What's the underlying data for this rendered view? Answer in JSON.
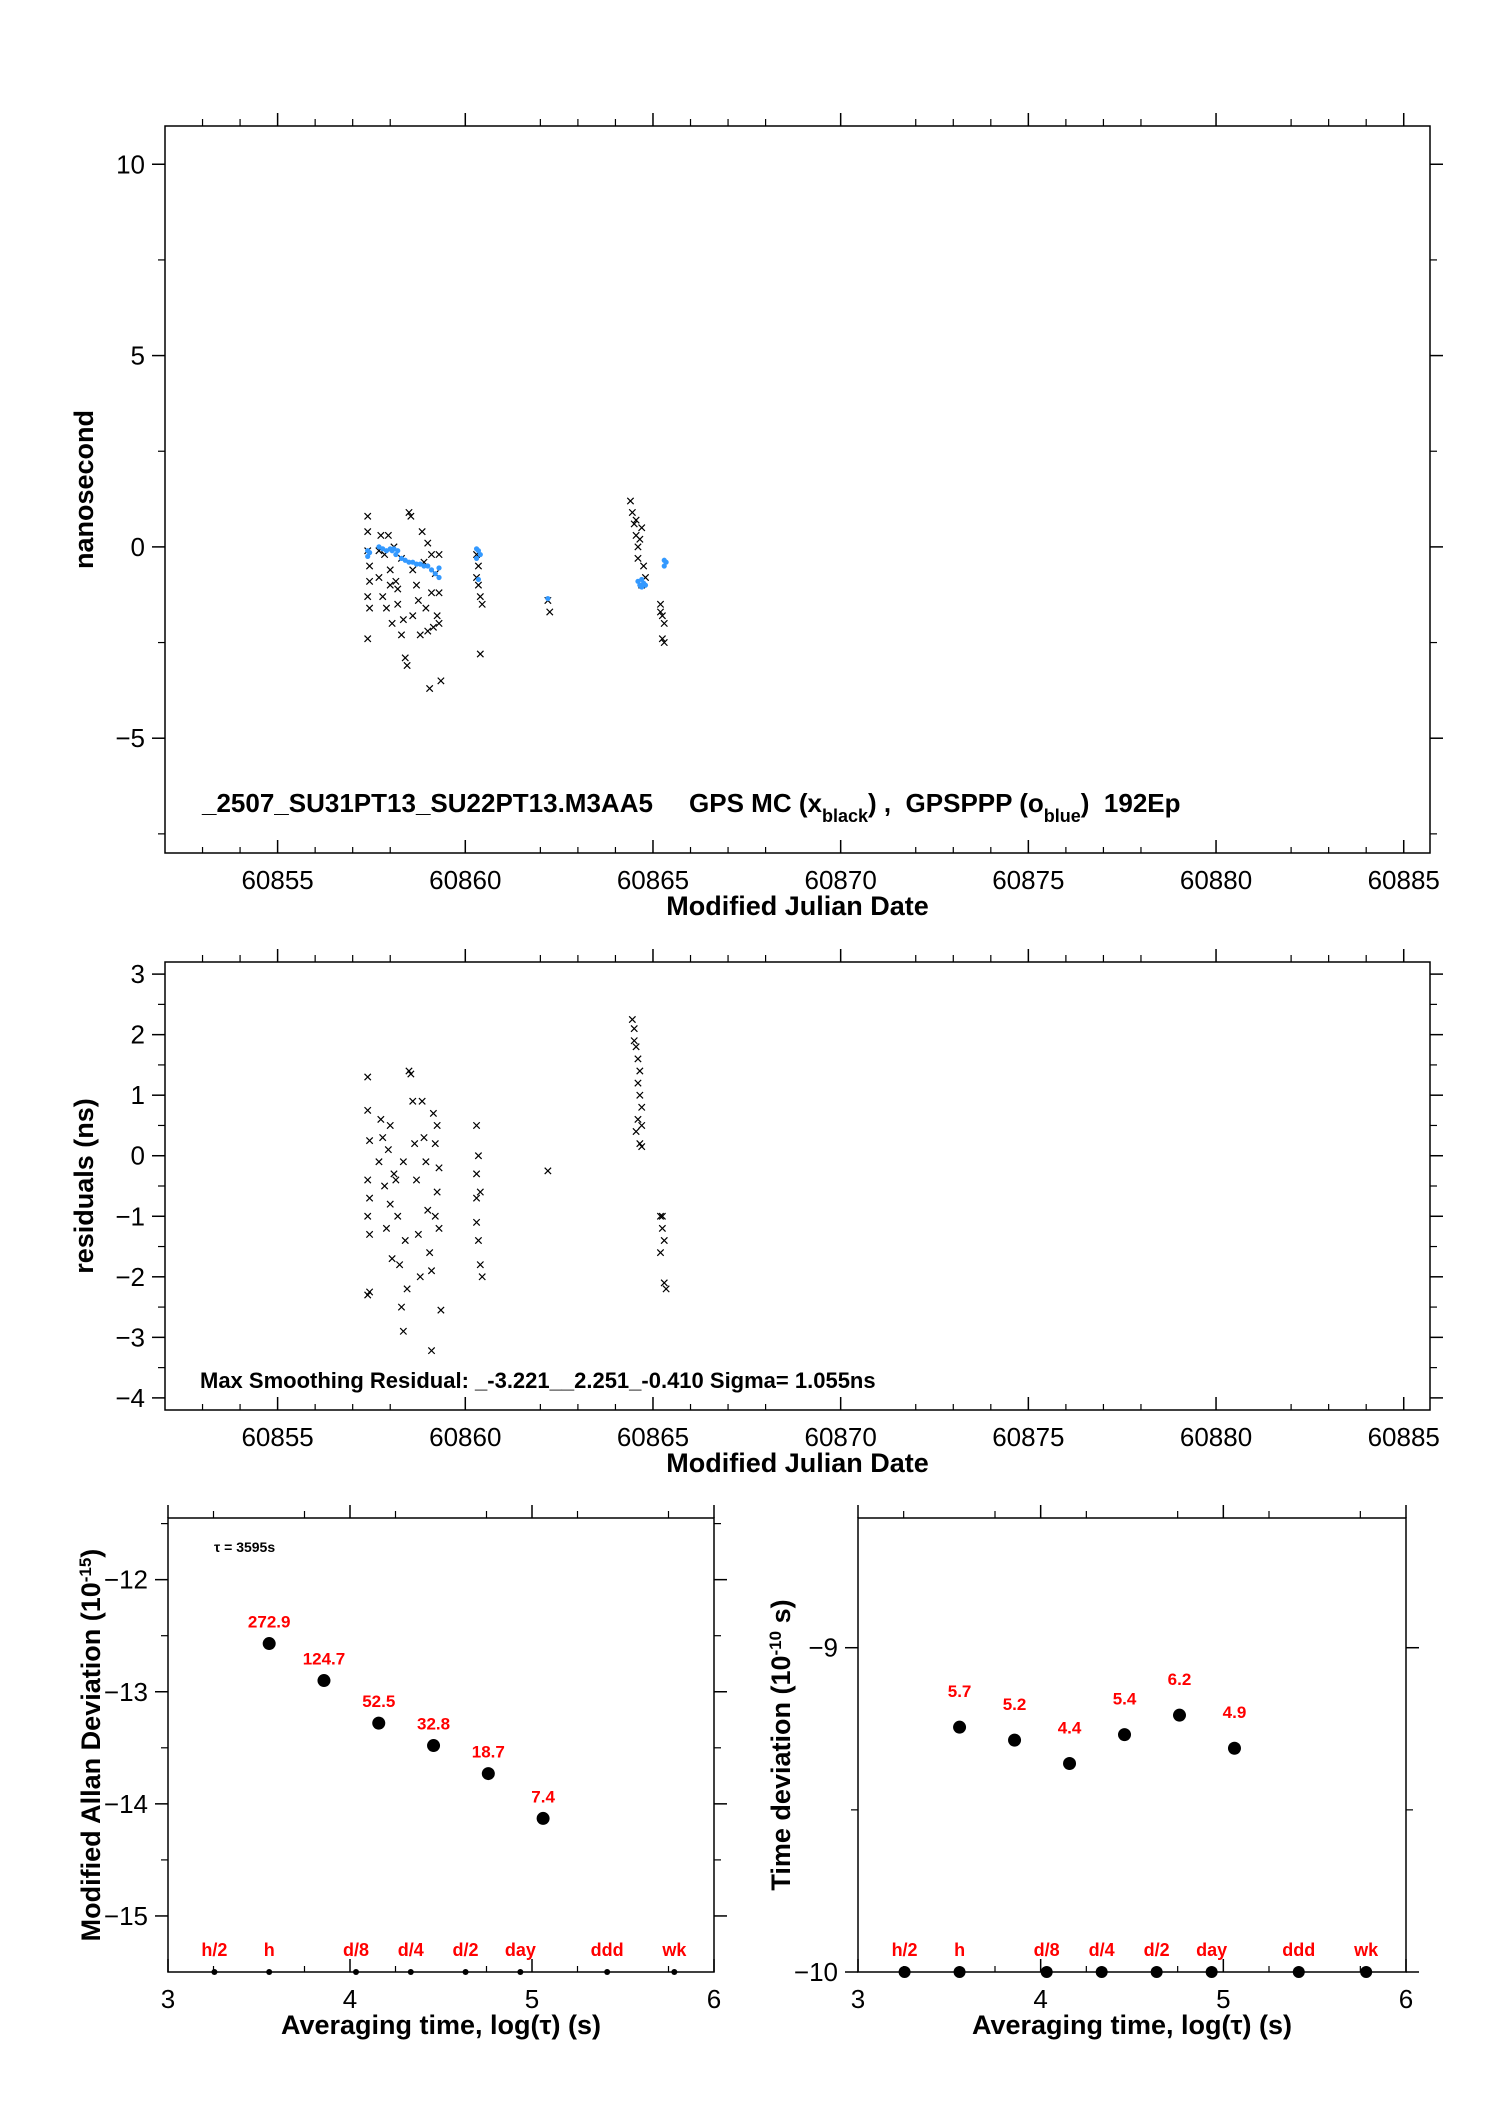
{
  "chart_data": [
    {
      "id": "p1",
      "type": "scatter",
      "xlabel": "Modified Julian Date",
      "ylabel": "nanosecond",
      "xlim": [
        60852.0,
        60885.7
      ],
      "ylim": [
        -8.0,
        11.0
      ],
      "xticks": [
        60855,
        60860,
        60865,
        60870,
        60875,
        60880,
        60885
      ],
      "yticks": [
        -5,
        0,
        5,
        10
      ],
      "annotation": {
        "prefix": "_2507_SU31PT13_SU22PT13.M3AA5     GPS MC (x",
        "sub1": "black",
        "middle": ") ,  GPSPPP (o",
        "sub2": "blue",
        "suffix": ")  192Ep"
      },
      "series": [
        {
          "marker": "x",
          "color": "#000000",
          "points": [
            [
              60857.4,
              0.8
            ],
            [
              60857.4,
              0.4
            ],
            [
              60857.4,
              -0.1
            ],
            [
              60857.45,
              -0.5
            ],
            [
              60857.45,
              -0.9
            ],
            [
              60857.4,
              -1.3
            ],
            [
              60857.45,
              -1.6
            ],
            [
              60857.4,
              -2.4
            ],
            [
              60857.7,
              -0.1
            ],
            [
              60857.7,
              -0.8
            ],
            [
              60857.75,
              0.3
            ],
            [
              60857.8,
              -1.3
            ],
            [
              60857.85,
              -0.2
            ],
            [
              60857.9,
              -1.6
            ],
            [
              60857.95,
              0.3
            ],
            [
              60858.0,
              -0.6
            ],
            [
              60858.0,
              -1.0
            ],
            [
              60858.05,
              -2.0
            ],
            [
              60858.1,
              0.0
            ],
            [
              60858.15,
              -0.9
            ],
            [
              60858.2,
              -1.5
            ],
            [
              60858.2,
              -1.1
            ],
            [
              60858.3,
              -2.3
            ],
            [
              60858.3,
              -0.3
            ],
            [
              60858.35,
              -1.9
            ],
            [
              60858.4,
              -2.9
            ],
            [
              60858.45,
              -3.1
            ],
            [
              60858.5,
              0.9
            ],
            [
              60858.55,
              0.8
            ],
            [
              60858.6,
              -0.6
            ],
            [
              60858.6,
              -1.8
            ],
            [
              60858.7,
              -1.0
            ],
            [
              60858.75,
              -1.4
            ],
            [
              60858.8,
              -2.3
            ],
            [
              60858.85,
              0.4
            ],
            [
              60858.9,
              -0.4
            ],
            [
              60858.95,
              -1.6
            ],
            [
              60859.0,
              0.1
            ],
            [
              60859.0,
              -2.2
            ],
            [
              60859.05,
              -3.7
            ],
            [
              60859.1,
              -0.2
            ],
            [
              60859.1,
              -1.2
            ],
            [
              60859.15,
              -2.1
            ],
            [
              60859.2,
              -0.7
            ],
            [
              60859.25,
              -1.8
            ],
            [
              60859.3,
              -0.2
            ],
            [
              60859.3,
              -2.0
            ],
            [
              60859.35,
              -3.5
            ],
            [
              60859.3,
              -1.2
            ],
            [
              60860.3,
              -0.2
            ],
            [
              60860.35,
              -0.5
            ],
            [
              60860.35,
              -1.0
            ],
            [
              60860.4,
              -1.3
            ],
            [
              60860.4,
              -2.8
            ],
            [
              60860.45,
              -1.5
            ],
            [
              60860.3,
              -0.8
            ],
            [
              60862.2,
              -1.4
            ],
            [
              60862.25,
              -1.7
            ],
            [
              60864.4,
              1.2
            ],
            [
              60864.45,
              0.9
            ],
            [
              60864.5,
              0.6
            ],
            [
              60864.55,
              0.3
            ],
            [
              60864.6,
              0.0
            ],
            [
              60864.6,
              -0.3
            ],
            [
              60864.65,
              0.2
            ],
            [
              60864.7,
              0.5
            ],
            [
              60864.75,
              -0.5
            ],
            [
              60864.8,
              -0.8
            ],
            [
              60864.7,
              -1.0
            ],
            [
              60864.55,
              0.7
            ],
            [
              60865.2,
              -1.5
            ],
            [
              60865.25,
              -1.8
            ],
            [
              60865.3,
              -2.0
            ],
            [
              60865.25,
              -2.4
            ],
            [
              60865.3,
              -2.5
            ],
            [
              60865.2,
              -1.7
            ]
          ]
        },
        {
          "marker": "o",
          "color": "#3399ff",
          "points": [
            [
              60857.4,
              -0.1
            ],
            [
              60857.45,
              -0.15
            ],
            [
              60857.4,
              -0.25
            ],
            [
              60857.7,
              0.0
            ],
            [
              60857.8,
              -0.05
            ],
            [
              60857.9,
              -0.1
            ],
            [
              60858.0,
              -0.05
            ],
            [
              60858.05,
              -0.1
            ],
            [
              60858.1,
              -0.05
            ],
            [
              60858.15,
              -0.2
            ],
            [
              60858.2,
              -0.1
            ],
            [
              60858.3,
              -0.3
            ],
            [
              60858.4,
              -0.35
            ],
            [
              60858.5,
              -0.4
            ],
            [
              60858.6,
              -0.4
            ],
            [
              60858.7,
              -0.45
            ],
            [
              60858.8,
              -0.45
            ],
            [
              60858.9,
              -0.5
            ],
            [
              60859.0,
              -0.5
            ],
            [
              60859.1,
              -0.6
            ],
            [
              60859.2,
              -0.7
            ],
            [
              60859.3,
              -0.8
            ],
            [
              60859.3,
              -0.55
            ],
            [
              60860.3,
              -0.05
            ],
            [
              60860.35,
              -0.1
            ],
            [
              60860.4,
              -0.2
            ],
            [
              60860.3,
              -0.3
            ],
            [
              60860.35,
              -0.85
            ],
            [
              60862.2,
              -1.35
            ],
            [
              60864.6,
              -0.9
            ],
            [
              60864.65,
              -1.0
            ],
            [
              60864.7,
              -1.05
            ],
            [
              60864.75,
              -0.95
            ],
            [
              60864.8,
              -1.0
            ],
            [
              60864.7,
              -0.85
            ],
            [
              60865.3,
              -0.35
            ],
            [
              60865.35,
              -0.4
            ],
            [
              60865.3,
              -0.5
            ]
          ]
        }
      ]
    },
    {
      "id": "p2",
      "type": "scatter",
      "xlabel": "Modified Julian Date",
      "ylabel": "residuals (ns)",
      "xlim": [
        60852.0,
        60885.7
      ],
      "ylim": [
        -4.2,
        3.2
      ],
      "xticks": [
        60855,
        60860,
        60865,
        60870,
        60875,
        60880,
        60885
      ],
      "yticks": [
        -4,
        -3,
        -2,
        -1,
        0,
        1,
        2,
        3
      ],
      "annotation": "Max Smoothing Residual: _-3.221__2.251_-0.410  Sigma= 1.055ns",
      "series": [
        {
          "marker": "x",
          "color": "#000000",
          "points": [
            [
              60857.4,
              1.3
            ],
            [
              60857.4,
              0.75
            ],
            [
              60857.45,
              0.25
            ],
            [
              60857.4,
              -0.4
            ],
            [
              60857.45,
              -0.7
            ],
            [
              60857.4,
              -1.0
            ],
            [
              60857.45,
              -1.3
            ],
            [
              60857.4,
              -2.3
            ],
            [
              60857.45,
              -2.25
            ],
            [
              60857.7,
              -0.1
            ],
            [
              60857.75,
              0.6
            ],
            [
              60857.8,
              0.3
            ],
            [
              60857.85,
              -0.5
            ],
            [
              60857.9,
              -1.2
            ],
            [
              60857.95,
              0.1
            ],
            [
              60858.0,
              -0.8
            ],
            [
              60858.05,
              -1.7
            ],
            [
              60858.0,
              0.5
            ],
            [
              60858.1,
              -0.3
            ],
            [
              60858.15,
              -0.4
            ],
            [
              60858.2,
              -1.0
            ],
            [
              60858.25,
              -1.8
            ],
            [
              60858.3,
              -2.5
            ],
            [
              60858.35,
              -2.9
            ],
            [
              60858.35,
              -0.1
            ],
            [
              60858.4,
              -1.4
            ],
            [
              60858.45,
              -2.2
            ],
            [
              60858.5,
              1.4
            ],
            [
              60858.55,
              1.35
            ],
            [
              60858.6,
              0.9
            ],
            [
              60858.65,
              0.2
            ],
            [
              60858.7,
              -0.4
            ],
            [
              60858.75,
              -1.3
            ],
            [
              60858.8,
              -2.0
            ],
            [
              60858.85,
              0.9
            ],
            [
              60858.9,
              0.3
            ],
            [
              60858.95,
              -0.1
            ],
            [
              60859.0,
              -0.9
            ],
            [
              60859.05,
              -1.6
            ],
            [
              60859.1,
              -1.9
            ],
            [
              60859.1,
              -3.22
            ],
            [
              60859.15,
              0.7
            ],
            [
              60859.2,
              0.2
            ],
            [
              60859.25,
              -0.6
            ],
            [
              60859.3,
              -1.2
            ],
            [
              60859.3,
              -0.2
            ],
            [
              60859.35,
              -2.55
            ],
            [
              60859.25,
              0.5
            ],
            [
              60859.2,
              -1.0
            ],
            [
              60860.3,
              0.5
            ],
            [
              60860.35,
              0.0
            ],
            [
              60860.3,
              -0.3
            ],
            [
              60860.4,
              -0.6
            ],
            [
              60860.3,
              -1.1
            ],
            [
              60860.35,
              -1.4
            ],
            [
              60860.4,
              -1.8
            ],
            [
              60860.45,
              -2.0
            ],
            [
              60860.3,
              -0.7
            ],
            [
              60862.2,
              -0.25
            ],
            [
              60864.45,
              2.25
            ],
            [
              60864.5,
              2.1
            ],
            [
              60864.5,
              1.9
            ],
            [
              60864.55,
              1.8
            ],
            [
              60864.6,
              1.6
            ],
            [
              60864.65,
              1.4
            ],
            [
              60864.6,
              1.2
            ],
            [
              60864.65,
              1.0
            ],
            [
              60864.7,
              0.8
            ],
            [
              60864.6,
              0.6
            ],
            [
              60864.55,
              0.4
            ],
            [
              60864.65,
              0.2
            ],
            [
              60864.7,
              0.15
            ],
            [
              60864.7,
              0.5
            ],
            [
              60865.2,
              -1.0
            ],
            [
              60865.25,
              -1.2
            ],
            [
              60865.3,
              -1.4
            ],
            [
              60865.2,
              -1.6
            ],
            [
              60865.3,
              -2.1
            ],
            [
              60865.35,
              -2.2
            ],
            [
              60865.25,
              -1.0
            ]
          ]
        }
      ]
    },
    {
      "id": "p3",
      "type": "scatter",
      "xlabel": "Averaging time, log(τ) (s)",
      "ylabel": "Modified Allan Deviation (10",
      "ylabel_sup": "-15",
      "ylabel_end": ")",
      "xlim": [
        3.0,
        6.0
      ],
      "ylim": [
        -15.5,
        -11.45
      ],
      "xticks": [
        3,
        4,
        5,
        6
      ],
      "yticks": [
        -15,
        -14,
        -13,
        -12
      ],
      "tau_note": "τ = 3595s",
      "points": [
        {
          "x": 3.556,
          "y": -12.57,
          "label": "272.9"
        },
        {
          "x": 3.857,
          "y": -12.9,
          "label": "124.7"
        },
        {
          "x": 4.158,
          "y": -13.28,
          "label": "52.5"
        },
        {
          "x": 4.459,
          "y": -13.48,
          "label": "32.8"
        },
        {
          "x": 4.76,
          "y": -13.73,
          "label": "18.7"
        },
        {
          "x": 5.061,
          "y": -14.13,
          "label": "7.4"
        }
      ],
      "markers": [
        {
          "x": 3.255,
          "label": "h/2"
        },
        {
          "x": 3.556,
          "label": "h"
        },
        {
          "x": 4.033,
          "label": "d/8"
        },
        {
          "x": 4.334,
          "label": "d/4"
        },
        {
          "x": 4.635,
          "label": "d/2"
        },
        {
          "x": 4.936,
          "label": "day"
        },
        {
          "x": 5.413,
          "label": "ddd"
        },
        {
          "x": 5.782,
          "label": "wk"
        }
      ]
    },
    {
      "id": "p4",
      "type": "scatter",
      "xlabel": "Averaging time, log(τ) (s)",
      "ylabel": "Time deviation (10",
      "ylabel_sup": "-10",
      "ylabel_end": " s)",
      "xlim": [
        3.0,
        6.0
      ],
      "ylim": [
        -10.0,
        -8.6
      ],
      "xticks": [
        3,
        4,
        5,
        6
      ],
      "yticks": [
        -10,
        -9
      ],
      "points": [
        {
          "x": 3.556,
          "y": -9.245,
          "label": "5.7"
        },
        {
          "x": 3.857,
          "y": -9.285,
          "label": "5.2"
        },
        {
          "x": 4.158,
          "y": -9.357,
          "label": "4.4"
        },
        {
          "x": 4.459,
          "y": -9.268,
          "label": "5.4"
        },
        {
          "x": 4.76,
          "y": -9.208,
          "label": "6.2"
        },
        {
          "x": 5.061,
          "y": -9.31,
          "label": "4.9"
        }
      ],
      "markers": [
        {
          "x": 3.255,
          "label": "h/2"
        },
        {
          "x": 3.556,
          "label": "h"
        },
        {
          "x": 4.033,
          "label": "d/8"
        },
        {
          "x": 4.334,
          "label": "d/4"
        },
        {
          "x": 4.635,
          "label": "d/2"
        },
        {
          "x": 4.936,
          "label": "day"
        },
        {
          "x": 5.413,
          "label": "ddd"
        },
        {
          "x": 5.782,
          "label": "wk"
        }
      ]
    }
  ]
}
